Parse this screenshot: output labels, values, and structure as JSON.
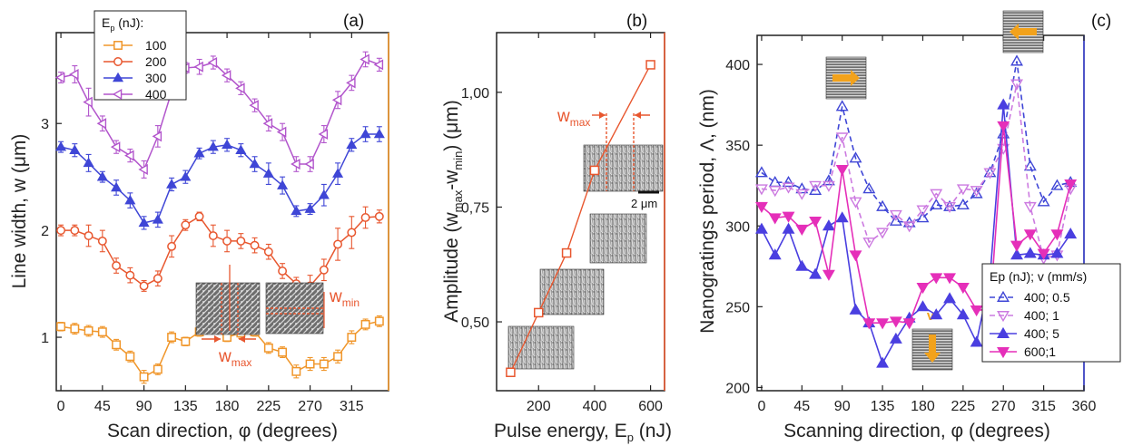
{
  "chart_data": [
    {
      "type": "line",
      "panel_label": "(a)",
      "xlabel": "Scan direction, φ (degrees)",
      "ylabel": "Line width, w (μm)",
      "xlim": [
        -5,
        355
      ],
      "ylim": [
        0.5,
        3.85
      ],
      "xticks": [
        0,
        45,
        90,
        135,
        180,
        225,
        270,
        315
      ],
      "yticks": [
        1,
        2,
        3
      ],
      "legend": {
        "title": "Ep (nJ):",
        "placement": "top-left"
      },
      "x": [
        0,
        15,
        30,
        45,
        60,
        75,
        90,
        105,
        120,
        135,
        150,
        165,
        180,
        195,
        210,
        225,
        240,
        255,
        270,
        285,
        300,
        315,
        330,
        345
      ],
      "series": [
        {
          "name": "100",
          "color": "#f0962a",
          "marker": "square",
          "values": [
            1.1,
            1.08,
            1.06,
            1.05,
            0.93,
            0.82,
            0.63,
            0.7,
            1.0,
            0.96,
            1.05,
            1.08,
            1.0,
            1.04,
            1.05,
            0.9,
            0.86,
            0.68,
            0.75,
            0.75,
            0.82,
            1.0,
            1.12,
            1.15
          ],
          "errors": [
            0.04,
            0.05,
            0.05,
            0.05,
            0.05,
            0.05,
            0.06,
            0.05,
            0.05,
            0.04,
            0.04,
            0.04,
            0.04,
            0.05,
            0.04,
            0.05,
            0.05,
            0.06,
            0.06,
            0.06,
            0.06,
            0.06,
            0.05,
            0.05
          ]
        },
        {
          "name": "200",
          "color": "#e8572f",
          "marker": "circle",
          "values": [
            2.0,
            2.0,
            1.95,
            1.9,
            1.67,
            1.58,
            1.48,
            1.55,
            1.85,
            2.05,
            2.13,
            1.95,
            1.9,
            1.9,
            1.86,
            1.8,
            1.62,
            1.5,
            1.48,
            1.63,
            1.87,
            1.98,
            2.12,
            2.13
          ],
          "errors": [
            0.05,
            0.05,
            0.1,
            0.1,
            0.07,
            0.07,
            0.05,
            0.07,
            0.1,
            0.05,
            0.04,
            0.1,
            0.1,
            0.07,
            0.07,
            0.07,
            0.07,
            0.06,
            0.1,
            0.1,
            0.15,
            0.15,
            0.1,
            0.06
          ]
        },
        {
          "name": "300",
          "color": "#3f46d6",
          "marker": "triangle-up",
          "values": [
            2.78,
            2.75,
            2.63,
            2.5,
            2.4,
            2.28,
            2.07,
            2.1,
            2.43,
            2.5,
            2.72,
            2.78,
            2.8,
            2.75,
            2.62,
            2.53,
            2.42,
            2.18,
            2.2,
            2.33,
            2.53,
            2.8,
            2.9,
            2.9
          ],
          "errors": [
            0.05,
            0.06,
            0.08,
            0.05,
            0.07,
            0.07,
            0.06,
            0.07,
            0.06,
            0.06,
            0.05,
            0.06,
            0.06,
            0.06,
            0.07,
            0.1,
            0.08,
            0.05,
            0.05,
            0.1,
            0.1,
            0.06,
            0.07,
            0.07
          ]
        },
        {
          "name": "400",
          "color": "#b255cc",
          "marker": "triangle-left",
          "values": [
            3.43,
            3.46,
            3.2,
            3.0,
            2.78,
            2.7,
            2.57,
            2.88,
            3.3,
            3.52,
            3.53,
            3.57,
            3.45,
            3.33,
            3.17,
            3.0,
            2.92,
            2.62,
            2.62,
            2.9,
            3.22,
            3.38,
            3.6,
            3.55
          ],
          "errors": [
            0.05,
            0.08,
            0.13,
            0.07,
            0.06,
            0.06,
            0.08,
            0.1,
            0.05,
            0.05,
            0.07,
            0.06,
            0.06,
            0.06,
            0.06,
            0.07,
            0.08,
            0.07,
            0.07,
            0.08,
            0.08,
            0.07,
            0.07,
            0.06
          ]
        }
      ],
      "annotations": [
        "wmax",
        "wmin"
      ]
    },
    {
      "type": "line",
      "panel_label": "(b)",
      "xlabel": "Pulse energy, Ep (nJ)",
      "ylabel": "Amplitude (wmax-wmin) (μm)",
      "xlim": [
        50,
        650
      ],
      "ylim": [
        0.35,
        1.13
      ],
      "xticks": [
        200,
        400,
        600
      ],
      "yticks": [
        0.5,
        0.75,
        1.0
      ],
      "ytick_labels": [
        "0,50",
        "0,75",
        "1,00"
      ],
      "x": [
        100,
        200,
        300,
        400,
        600
      ],
      "series": [
        {
          "color": "#e8572f",
          "marker": "square",
          "values": [
            0.39,
            0.52,
            0.65,
            0.83,
            1.06
          ]
        }
      ],
      "annotations": [
        "wmax",
        "2 μm"
      ]
    },
    {
      "type": "line",
      "panel_label": "(c)",
      "xlabel": "Scanning direction, φ (degrees)",
      "ylabel": "Nanogratings period, Λ, (nm)",
      "xlim": [
        -5,
        360
      ],
      "ylim": [
        198,
        418
      ],
      "xticks": [
        0,
        45,
        90,
        135,
        180,
        225,
        270,
        315,
        360
      ],
      "yticks": [
        200,
        250,
        300,
        350,
        400
      ],
      "legend": {
        "title": "Ep (nJ); v (mm/s)",
        "placement": "right"
      },
      "x": [
        0,
        15,
        30,
        45,
        60,
        75,
        90,
        105,
        120,
        135,
        150,
        165,
        180,
        195,
        210,
        225,
        240,
        255,
        270,
        285,
        300,
        315,
        330,
        345
      ],
      "series": [
        {
          "name": "400; 0.5",
          "color": "#3f46d6",
          "marker": "triangle-up-open",
          "dash": true,
          "values": [
            333,
            327,
            327,
            323,
            322,
            328,
            374,
            342,
            323,
            312,
            303,
            302,
            305,
            313,
            312,
            313,
            320,
            333,
            357,
            402,
            337,
            315,
            325,
            327
          ]
        },
        {
          "name": "400; 1",
          "color": "#cc7ae0",
          "marker": "triangle-down-open",
          "dash": true,
          "values": [
            323,
            322,
            324,
            320,
            325,
            325,
            355,
            315,
            290,
            296,
            307,
            300,
            310,
            320,
            312,
            323,
            322,
            333,
            348,
            388,
            312,
            280,
            282,
            323
          ]
        },
        {
          "name": "400; 5",
          "color": "#4a3fe0",
          "marker": "triangle-up",
          "values": [
            298,
            282,
            298,
            275,
            270,
            300,
            305,
            248,
            240,
            215,
            230,
            243,
            250,
            245,
            255,
            245,
            228,
            268,
            375,
            282,
            283,
            282,
            283,
            295
          ]
        },
        {
          "name": "600;1",
          "color": "#e52fb9",
          "marker": "triangle-down",
          "values": [
            312,
            305,
            306,
            298,
            303,
            270,
            335,
            282,
            240,
            240,
            241,
            240,
            262,
            268,
            268,
            262,
            248,
            248,
            362,
            288,
            295,
            283,
            295,
            326
          ]
        }
      ],
      "annotations": [
        "v"
      ]
    }
  ]
}
